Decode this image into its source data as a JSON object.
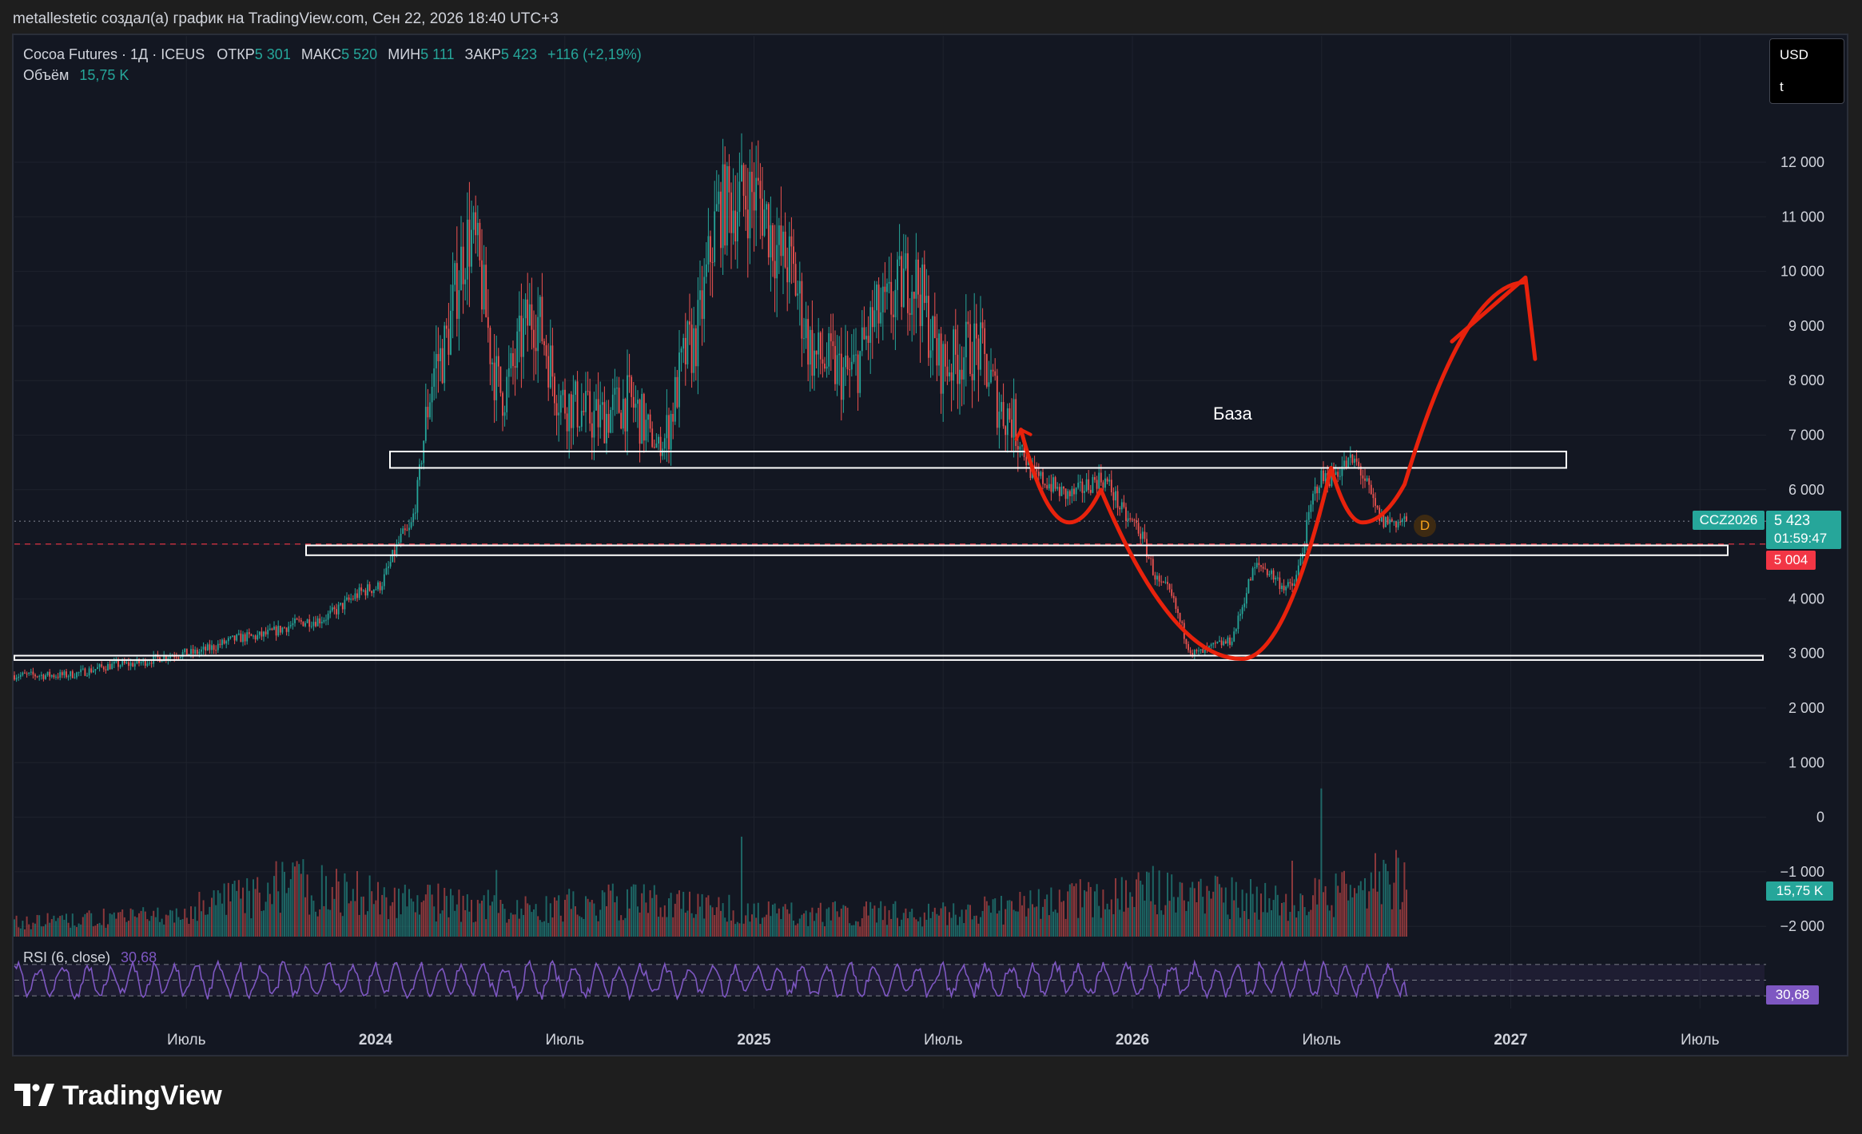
{
  "header": {
    "attribution": "metallestetic создал(а) график на TradingView.com, Сен 22, 2026 18:40 UTC+3"
  },
  "legend": {
    "symbol": "Cocoa Futures · 1Д · ICEUS",
    "open_label": "ОТКР",
    "open_value": "5 301",
    "high_label": "МАКС",
    "high_value": "5 520",
    "low_label": "МИН",
    "low_value": "5 111",
    "close_label": "ЗАКР",
    "close_value": "5 423",
    "change": "+116 (+2,19%)",
    "volume_label": "Объём",
    "volume_value": "15,75 K"
  },
  "currency_box": {
    "currency": "USD",
    "unit": "t"
  },
  "price_labels": {
    "ticker": "CCZ2026",
    "last": "5 423",
    "countdown": "01:59:47",
    "line": "5 004",
    "volume": "15,75 K",
    "rsi": "30,68"
  },
  "rsi_legend": {
    "title": "RSI (6, close)",
    "value": "30,68"
  },
  "annotation": {
    "zone_label": "База",
    "event_marker": "D"
  },
  "footer": {
    "brand": "TradingView"
  },
  "colors": {
    "up": "#26a69a",
    "down": "#ef5350",
    "rsi": "#7e57c2",
    "drawing": "#e8220c",
    "background": "#131722"
  },
  "chart_data": [
    {
      "type": "candlestick",
      "title": "Cocoa Futures · 1Д · ICEUS",
      "ylabel": "",
      "xlabel": "",
      "y_axis_side": "right",
      "ylim": [
        -2000,
        12000
      ],
      "y_ticks": [
        12000,
        11000,
        10000,
        9000,
        8000,
        7000,
        6000,
        5000,
        4000,
        3000,
        2000,
        1000,
        0,
        -1000,
        -2000
      ],
      "y_tick_labels": [
        "12 000",
        "11 000",
        "10 000",
        "9 000",
        "8 000",
        "7 000",
        "6 000",
        "",
        "4 000",
        "3 000",
        "2 000",
        "1 000",
        "0",
        "−1 000",
        "−2 000"
      ],
      "x_tick_labels": [
        "Июль",
        "2024",
        "Июль",
        "2025",
        "Июль",
        "2026",
        "Июль",
        "2027",
        "Июль"
      ],
      "x_ticks": [
        "2023-07",
        "2024-01",
        "2024-07",
        "2025-01",
        "2025-07",
        "2026-01",
        "2026-07",
        "2027-01",
        "2027-07"
      ],
      "grid": true,
      "x": [
        "2023-03",
        "2023-05",
        "2023-07",
        "2023-09",
        "2023-11",
        "2024-01",
        "2024-02",
        "2024-03",
        "2024-04",
        "2024-05",
        "2024-06",
        "2024-07",
        "2024-08",
        "2024-09",
        "2024-10",
        "2024-11",
        "2024-12",
        "2025-01",
        "2025-02",
        "2025-03",
        "2025-04",
        "2025-05",
        "2025-06",
        "2025-07",
        "2025-08",
        "2025-09",
        "2025-10",
        "2025-11",
        "2025-12",
        "2026-01",
        "2026-02",
        "2026-03",
        "2026-04",
        "2026-05",
        "2026-06",
        "2026-07",
        "2026-08",
        "2026-09"
      ],
      "close": [
        2600,
        2800,
        3000,
        3300,
        3600,
        4200,
        5200,
        8400,
        10600,
        7800,
        9200,
        7600,
        7300,
        7600,
        6800,
        8600,
        11200,
        11400,
        10200,
        8400,
        8100,
        9200,
        9900,
        8300,
        8600,
        7400,
        6200,
        5900,
        6200,
        5400,
        4200,
        3000,
        3200,
        4600,
        4200,
        6200,
        6500,
        5423
      ],
      "series": [
        {
          "name": "Объём",
          "values_k": [
            4,
            4,
            5,
            5,
            6,
            9,
            10,
            14,
            12,
            11,
            10,
            9,
            8,
            7,
            7,
            8,
            9,
            9,
            8,
            7,
            6,
            6,
            6,
            6,
            6,
            6,
            7,
            8,
            9,
            10,
            11,
            12,
            11,
            10,
            9,
            10,
            11,
            15.75
          ]
        }
      ],
      "levels": [
        {
          "type": "zone",
          "from": 6400,
          "to": 6700,
          "label": "База"
        },
        {
          "type": "zone",
          "from": 4800,
          "to": 4980
        },
        {
          "type": "zone",
          "from": 2880,
          "to": 2960
        },
        {
          "type": "hline",
          "value": 5004,
          "style": "dashed"
        },
        {
          "type": "hline",
          "value": 5423,
          "style": "dotted"
        }
      ],
      "drawing": {
        "type": "freehand_arrow",
        "points": [
          [
            "2025-09-15",
            7100
          ],
          [
            "2025-11-01",
            5400
          ],
          [
            "2025-12-01",
            6000
          ],
          [
            "2026-04-15",
            2900
          ],
          [
            "2026-07-10",
            6400
          ],
          [
            "2026-08-10",
            5400
          ],
          [
            "2026-09-20",
            6100
          ],
          [
            "2027-01-15",
            9800
          ]
        ]
      }
    },
    {
      "type": "line",
      "title": "RSI (6, close)",
      "ylim": [
        0,
        100
      ],
      "bands": [
        30,
        70
      ],
      "current": 30.68
    }
  ]
}
